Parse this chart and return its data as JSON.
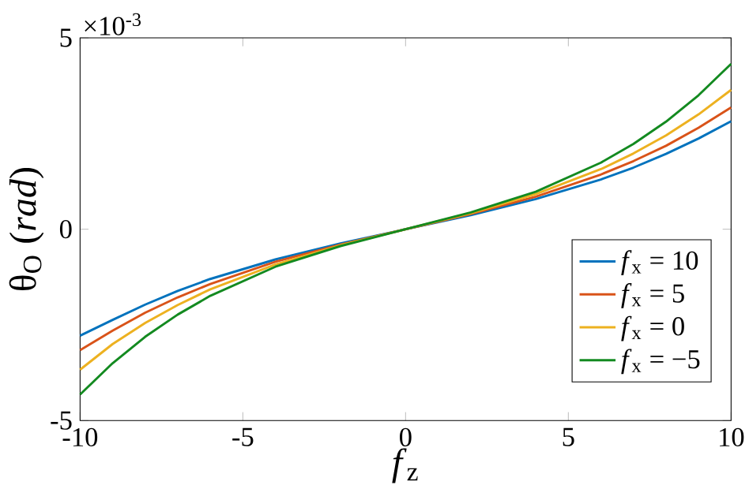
{
  "chart_data": {
    "type": "line",
    "xlabel": "*f*$_{z}$",
    "ylabel": "θ$_{O}$ (*rad*)",
    "annotations": [
      "×10$^{-3}$"
    ],
    "x": [
      -10,
      -9,
      -8,
      -7,
      -6,
      -4,
      -2,
      0,
      2,
      4,
      6,
      7,
      8,
      9,
      10
    ],
    "xlim": [
      -10,
      10
    ],
    "xticks": [
      -10,
      -5,
      0,
      5,
      10
    ],
    "ylim": [
      -5,
      5
    ],
    "yticks": [
      -5,
      0,
      5
    ],
    "legend": "bottom right",
    "grid": false,
    "marker": "none",
    "line_style": "solid",
    "series": [
      {
        "name": "*f*$_{x}$ = 10",
        "color": "#0072bd",
        "values": [
          -2.78,
          -2.37,
          -1.97,
          -1.61,
          -1.3,
          -0.79,
          -0.37,
          0,
          0.37,
          0.79,
          1.3,
          1.61,
          1.97,
          2.37,
          2.82
        ]
      },
      {
        "name": "*f*$_{x}$ = 5",
        "color": "#d95319",
        "values": [
          -3.16,
          -2.65,
          -2.18,
          -1.78,
          -1.43,
          -0.85,
          -0.4,
          0,
          0.4,
          0.85,
          1.43,
          1.78,
          2.18,
          2.65,
          3.18
        ]
      },
      {
        "name": "*f*$_{x}$ = 0",
        "color": "#edb120",
        "values": [
          -3.67,
          -3.0,
          -2.45,
          -1.98,
          -1.57,
          -0.92,
          -0.42,
          0,
          0.42,
          0.92,
          1.57,
          1.98,
          2.45,
          3.0,
          3.64
        ]
      },
      {
        "name": "*f*$_{x}$ = −5",
        "color": "#138a20",
        "values": [
          -4.32,
          -3.5,
          -2.81,
          -2.23,
          -1.74,
          -0.98,
          -0.44,
          0,
          0.44,
          0.98,
          1.74,
          2.23,
          2.81,
          3.5,
          4.32
        ]
      }
    ]
  }
}
